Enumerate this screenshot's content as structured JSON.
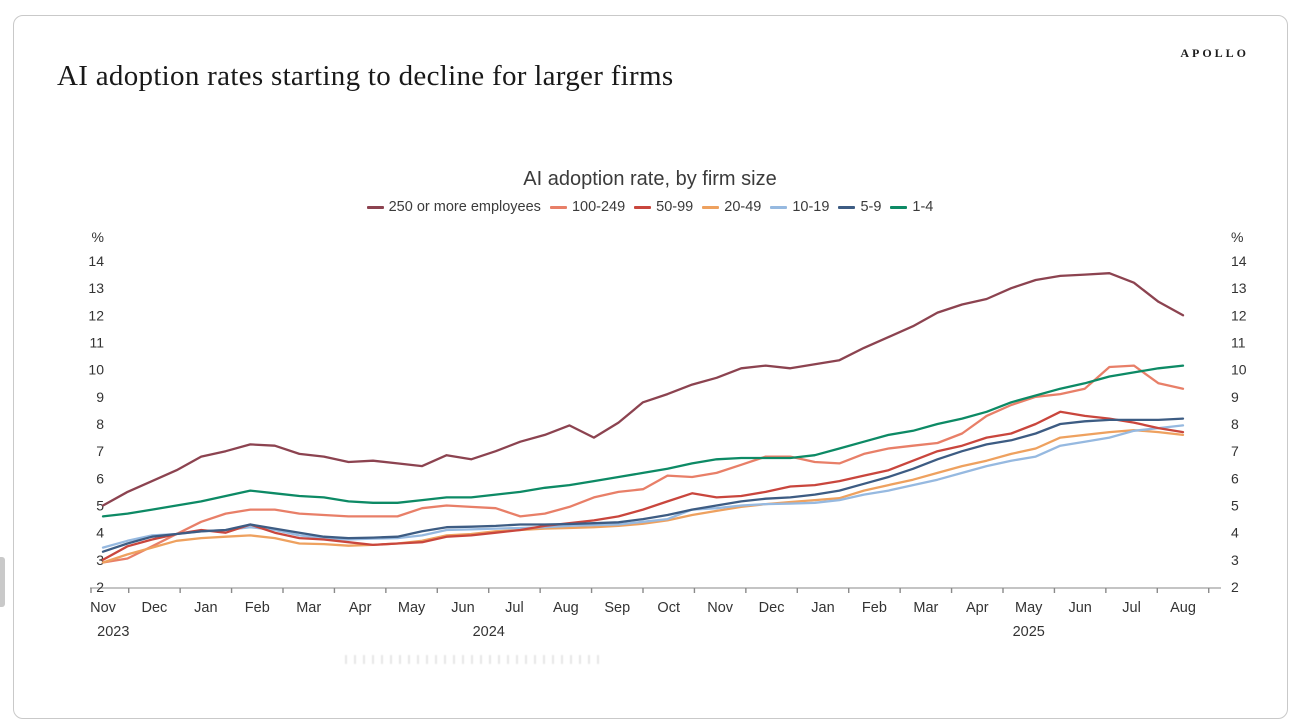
{
  "header": {
    "logo": "APOLLO",
    "title": "AI adoption rates starting to decline for larger firms"
  },
  "chart_data": {
    "type": "line",
    "title": "AI adoption rate, by firm size",
    "y_unit": "%",
    "ylim": [
      2,
      14
    ],
    "y_tick_step": 1,
    "grid": false,
    "legend_position": "top-center",
    "x_labels": [
      "Nov",
      "Dec",
      "Jan",
      "Feb",
      "Mar",
      "Apr",
      "May",
      "Jun",
      "Jul",
      "Aug",
      "Sep",
      "Oct",
      "Nov",
      "Dec",
      "Jan",
      "Feb",
      "Mar",
      "Apr",
      "May",
      "Jun",
      "Jul",
      "Aug"
    ],
    "year_labels": [
      {
        "label": "2023",
        "month_index": 0.2
      },
      {
        "label": "2024",
        "month_index": 7.5
      },
      {
        "label": "2025",
        "month_index": 18
      }
    ],
    "x_note": "biweekly data points, Nov 2023 - Aug 2025",
    "series": [
      {
        "name": "250 or more employees",
        "color": "#8c4350",
        "values": [
          5.0,
          5.5,
          5.9,
          6.3,
          6.8,
          7.0,
          7.25,
          7.2,
          6.9,
          6.8,
          6.6,
          6.65,
          6.55,
          6.45,
          6.85,
          6.7,
          7.0,
          7.35,
          7.6,
          7.95,
          7.5,
          8.05,
          8.8,
          9.1,
          9.45,
          9.7,
          10.05,
          10.15,
          10.05,
          10.2,
          10.35,
          10.8,
          11.2,
          11.6,
          12.1,
          12.4,
          12.6,
          13.0,
          13.3,
          13.45,
          13.5,
          13.55,
          13.2,
          12.5,
          12.0
        ]
      },
      {
        "name": "100-249",
        "color": "#e87f68",
        "values": [
          2.9,
          3.05,
          3.5,
          3.95,
          4.4,
          4.7,
          4.85,
          4.85,
          4.7,
          4.65,
          4.6,
          4.6,
          4.6,
          4.9,
          5.0,
          4.95,
          4.9,
          4.6,
          4.7,
          4.95,
          5.3,
          5.5,
          5.6,
          6.1,
          6.05,
          6.2,
          6.5,
          6.8,
          6.8,
          6.6,
          6.55,
          6.9,
          7.1,
          7.2,
          7.3,
          7.65,
          8.3,
          8.7,
          9.0,
          9.1,
          9.3,
          10.1,
          10.15,
          9.5,
          9.3
        ]
      },
      {
        "name": "50-99",
        "color": "#c9463d",
        "values": [
          3.0,
          3.5,
          3.75,
          3.95,
          4.1,
          4.0,
          4.3,
          4.0,
          3.8,
          3.75,
          3.65,
          3.55,
          3.6,
          3.65,
          3.85,
          3.9,
          4.0,
          4.1,
          4.25,
          4.35,
          4.45,
          4.6,
          4.85,
          5.15,
          5.45,
          5.3,
          5.35,
          5.5,
          5.7,
          5.75,
          5.9,
          6.1,
          6.3,
          6.65,
          7.0,
          7.2,
          7.5,
          7.65,
          8.0,
          8.45,
          8.3,
          8.2,
          8.05,
          7.85,
          7.7
        ]
      },
      {
        "name": "20-49",
        "color": "#eea15f",
        "values": [
          2.9,
          3.2,
          3.45,
          3.7,
          3.8,
          3.85,
          3.9,
          3.8,
          3.6,
          3.58,
          3.52,
          3.55,
          3.6,
          3.7,
          3.9,
          3.95,
          4.05,
          4.1,
          4.15,
          4.17,
          4.2,
          4.25,
          4.33,
          4.45,
          4.65,
          4.8,
          4.95,
          5.05,
          5.13,
          5.2,
          5.27,
          5.55,
          5.75,
          5.95,
          6.2,
          6.45,
          6.65,
          6.9,
          7.1,
          7.5,
          7.6,
          7.7,
          7.77,
          7.7,
          7.6
        ]
      },
      {
        "name": "10-19",
        "color": "#96b9e0",
        "values": [
          3.45,
          3.7,
          3.9,
          3.95,
          4.05,
          4.1,
          4.2,
          4.1,
          3.9,
          3.8,
          3.75,
          3.78,
          3.8,
          3.9,
          4.1,
          4.12,
          4.15,
          4.17,
          4.2,
          4.25,
          4.28,
          4.3,
          4.4,
          4.5,
          4.85,
          4.9,
          5.0,
          5.05,
          5.07,
          5.1,
          5.2,
          5.4,
          5.55,
          5.75,
          5.95,
          6.2,
          6.45,
          6.65,
          6.8,
          7.2,
          7.35,
          7.5,
          7.75,
          7.85,
          7.95
        ]
      },
      {
        "name": "5-9",
        "color": "#3d5c83",
        "values": [
          3.3,
          3.6,
          3.85,
          3.95,
          4.05,
          4.1,
          4.3,
          4.15,
          4.0,
          3.85,
          3.8,
          3.82,
          3.85,
          4.05,
          4.2,
          4.22,
          4.25,
          4.3,
          4.3,
          4.32,
          4.35,
          4.38,
          4.5,
          4.65,
          4.85,
          5.0,
          5.15,
          5.25,
          5.3,
          5.4,
          5.55,
          5.8,
          6.05,
          6.35,
          6.7,
          7.0,
          7.25,
          7.4,
          7.65,
          8.0,
          8.1,
          8.15,
          8.15,
          8.15,
          8.2
        ]
      },
      {
        "name": "1-4",
        "color": "#0d8a65",
        "values": [
          4.6,
          4.7,
          4.85,
          5.0,
          5.15,
          5.35,
          5.55,
          5.45,
          5.35,
          5.3,
          5.15,
          5.1,
          5.1,
          5.2,
          5.3,
          5.3,
          5.4,
          5.5,
          5.65,
          5.75,
          5.9,
          6.05,
          6.2,
          6.35,
          6.55,
          6.7,
          6.75,
          6.75,
          6.75,
          6.85,
          7.1,
          7.35,
          7.6,
          7.75,
          8.0,
          8.2,
          8.45,
          8.8,
          9.05,
          9.3,
          9.5,
          9.75,
          9.9,
          10.05,
          10.15
        ]
      }
    ],
    "draw_order": [
      1,
      3,
      4,
      2,
      5,
      6,
      0
    ],
    "axis_color": "#b0b0b0",
    "tick_color": "#8a8a8a",
    "label_color": "#333333"
  }
}
